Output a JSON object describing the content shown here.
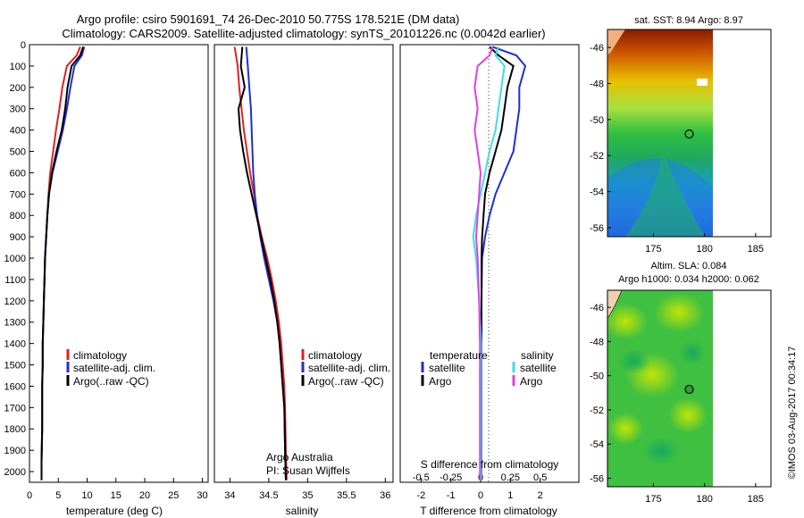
{
  "header": {
    "title_line1": "Argo profile: csiro 5901691_74 26-Dec-2010 50.775S 178.521E (DM data)",
    "title_line2": "Climatology: CARS2009. Satellite-adjusted climatology: synTS_20101226.nc (0.0042d earlier)"
  },
  "footer": {
    "timestamp": "©IMOS 03-Aug-2017 00:34:17"
  },
  "colors": {
    "climatology": "#e02020",
    "satellite": "#1f2fd0",
    "argo": "#000000",
    "sal_satellite": "#38e0e8",
    "sal_argo": "#e040e0"
  },
  "chart_data": [
    {
      "type": "line",
      "id": "temperature_profile",
      "xlabel": "temperature (deg C)",
      "ylabel": "",
      "xlim": [
        0,
        31
      ],
      "ylim": [
        2050,
        0
      ],
      "xticks": [
        "0",
        "5",
        "10",
        "15",
        "20",
        "25",
        "30"
      ],
      "yticks": [
        "0",
        "100",
        "200",
        "300",
        "400",
        "500",
        "600",
        "700",
        "800",
        "900",
        "1000",
        "1100",
        "1200",
        "1300",
        "1400",
        "1500",
        "1600",
        "1700",
        "1800",
        "1900",
        "2000"
      ],
      "legend": [
        "climatology",
        "satellite-adj. clim.",
        "Argo(..raw -QC)"
      ],
      "series": [
        {
          "name": "climatology",
          "x": [
            8.8,
            8.2,
            6.5,
            5.7,
            5.2,
            4.6,
            4.1,
            3.6,
            3.3,
            3.1,
            2.9,
            2.7,
            2.6,
            2.5,
            2.4,
            2.3,
            2.3,
            2.2,
            2.2,
            2.1,
            2.1
          ],
          "y": [
            10,
            50,
            100,
            200,
            300,
            400,
            500,
            600,
            700,
            800,
            900,
            1000,
            1100,
            1200,
            1300,
            1400,
            1500,
            1600,
            1800,
            1950,
            2040
          ]
        },
        {
          "name": "satellite-adj. clim.",
          "x": [
            9.5,
            9.1,
            7.8,
            7.1,
            6.5,
            5.8,
            4.9,
            4.0,
            3.4,
            3.1,
            2.9,
            2.7,
            2.6,
            2.5,
            2.4,
            2.3,
            2.3,
            2.2,
            2.2,
            2.1,
            2.1
          ],
          "y": [
            10,
            50,
            100,
            200,
            300,
            400,
            500,
            600,
            700,
            800,
            900,
            1000,
            1100,
            1200,
            1300,
            1400,
            1500,
            1600,
            1800,
            1950,
            2040
          ]
        },
        {
          "name": "Argo(..raw -QC)",
          "x": [
            9.3,
            8.8,
            7.3,
            6.6,
            6.2,
            5.6,
            4.7,
            3.9,
            3.4,
            3.1,
            2.9,
            2.7,
            2.6,
            2.5,
            2.4,
            2.3,
            2.3,
            2.2,
            2.2,
            2.1,
            2.1
          ],
          "y": [
            10,
            50,
            100,
            200,
            300,
            400,
            500,
            600,
            700,
            800,
            900,
            1000,
            1100,
            1200,
            1300,
            1400,
            1500,
            1600,
            1800,
            1950,
            2040
          ]
        }
      ]
    },
    {
      "type": "line",
      "id": "salinity_profile",
      "xlabel": "salinity",
      "xlim": [
        33.8,
        36.1
      ],
      "ylim": [
        2050,
        0
      ],
      "xticks": [
        "34",
        "34.5",
        "35",
        "35.5",
        "36"
      ],
      "legend": [
        "climatology",
        "satellite-adj. clim.",
        "Argo(..raw -QC)"
      ],
      "annotation": [
        "Argo Australia",
        "PI: Susan Wijffels"
      ],
      "series": [
        {
          "name": "climatology",
          "x": [
            34.06,
            34.1,
            34.12,
            34.15,
            34.18,
            34.22,
            34.26,
            34.31,
            34.35,
            34.41,
            34.48,
            34.54,
            34.59,
            34.63,
            34.66,
            34.68,
            34.7,
            34.71,
            34.72,
            34.73
          ],
          "y": [
            10,
            100,
            200,
            300,
            400,
            500,
            600,
            700,
            800,
            900,
            1000,
            1100,
            1200,
            1300,
            1400,
            1500,
            1600,
            1700,
            1900,
            2040
          ]
        },
        {
          "name": "satellite-adj. clim.",
          "x": [
            34.21,
            34.23,
            34.25,
            34.27,
            34.28,
            34.29,
            34.3,
            34.32,
            34.35,
            34.39,
            34.44,
            34.5,
            34.56,
            34.61,
            34.64,
            34.66,
            34.68,
            34.7,
            34.71,
            34.72
          ],
          "y": [
            10,
            100,
            200,
            300,
            400,
            500,
            600,
            700,
            800,
            900,
            1000,
            1100,
            1200,
            1300,
            1400,
            1500,
            1600,
            1700,
            1900,
            2040
          ]
        },
        {
          "name": "Argo(..raw -QC)",
          "x": [
            34.16,
            34.14,
            34.19,
            34.11,
            34.13,
            34.17,
            34.22,
            34.28,
            34.34,
            34.4,
            34.46,
            34.52,
            34.57,
            34.61,
            34.64,
            34.66,
            34.68,
            34.7,
            34.71,
            34.72
          ],
          "y": [
            10,
            100,
            200,
            300,
            400,
            500,
            600,
            700,
            800,
            900,
            1000,
            1100,
            1200,
            1300,
            1400,
            1500,
            1600,
            1700,
            1900,
            2040
          ]
        }
      ]
    },
    {
      "type": "line",
      "id": "difference_profile",
      "xlabel": "T difference from climatology",
      "xlabel_top": "S difference from climatology",
      "xlim": [
        -2.7,
        3.3
      ],
      "ylim": [
        2050,
        0
      ],
      "xticks": [
        "-2",
        "-1",
        "0",
        "1",
        "2"
      ],
      "xticks_s": [
        "-0.5",
        "-0.25",
        "0",
        "0.25",
        "0.5"
      ],
      "legend_headers": [
        "temperature",
        "salinity"
      ],
      "legend": [
        "satellite",
        "Argo",
        "satellite",
        "Argo"
      ],
      "series": [
        {
          "name": "temperature satellite",
          "x": [
            0.4,
            1.2,
            1.5,
            1.3,
            1.3,
            1.2,
            1.1,
            0.8,
            0.5,
            0.3,
            0.15,
            0.05,
            0.03,
            0.03,
            0.03,
            0.03,
            0.03
          ],
          "y": [
            10,
            50,
            100,
            200,
            300,
            400,
            500,
            600,
            700,
            800,
            900,
            1000,
            1200,
            1400,
            1600,
            1800,
            2040
          ]
        },
        {
          "name": "temperature Argo",
          "x": [
            0.3,
            0.6,
            1.1,
            0.9,
            0.8,
            0.7,
            0.5,
            0.3,
            0.15,
            0.1,
            0.05,
            0.03,
            0.03,
            0.03,
            0.03,
            0.03,
            0.03
          ],
          "y": [
            10,
            50,
            100,
            200,
            300,
            400,
            500,
            600,
            700,
            800,
            900,
            1000,
            1200,
            1400,
            1600,
            1800,
            2040
          ]
        },
        {
          "name": "salinity satellite",
          "x": [
            0.6,
            0.5,
            0.8,
            0.7,
            0.6,
            0.5,
            0.3,
            0.15,
            0,
            -0.15,
            -0.25,
            -0.15,
            -0.05,
            0.02,
            0.02,
            0.02,
            0.02
          ],
          "y": [
            10,
            50,
            100,
            200,
            300,
            400,
            500,
            600,
            700,
            800,
            900,
            1000,
            1200,
            1400,
            1600,
            1800,
            2040
          ]
        },
        {
          "name": "salinity Argo",
          "x": [
            0.4,
            0.3,
            -0.1,
            -0.2,
            -0.1,
            -0.2,
            -0.1,
            0,
            -0.05,
            -0.1,
            -0.15,
            -0.1,
            -0.05,
            -0.02,
            -0.02,
            -0.02,
            -0.02
          ],
          "y": [
            10,
            50,
            100,
            200,
            300,
            400,
            500,
            600,
            700,
            800,
            900,
            1000,
            1200,
            1400,
            1600,
            1800,
            2040
          ]
        }
      ]
    },
    {
      "type": "heatmap",
      "id": "sst_map",
      "title": "sat. SST: 8.94  Argo: 8.97",
      "xlim": [
        170.5,
        186.5
      ],
      "ylim": [
        -56.5,
        -45
      ],
      "xticks": [
        "175",
        "180",
        "185"
      ],
      "yticks": [
        "-46",
        "-48",
        "-50",
        "-52",
        "-54",
        "-56"
      ],
      "marker": {
        "lon": 178.5,
        "lat": -50.8
      }
    },
    {
      "type": "heatmap",
      "id": "sla_map",
      "title_line1": "Altim. SLA: 0.084",
      "title_line2": "Argo h1000: 0.034 h2000: 0.062",
      "xlim": [
        170.5,
        186.5
      ],
      "ylim": [
        -56.5,
        -45
      ],
      "xticks": [
        "175",
        "180",
        "185"
      ],
      "yticks": [
        "-46",
        "-48",
        "-50",
        "-52",
        "-54",
        "-56"
      ],
      "marker": {
        "lon": 178.5,
        "lat": -50.8
      }
    }
  ]
}
